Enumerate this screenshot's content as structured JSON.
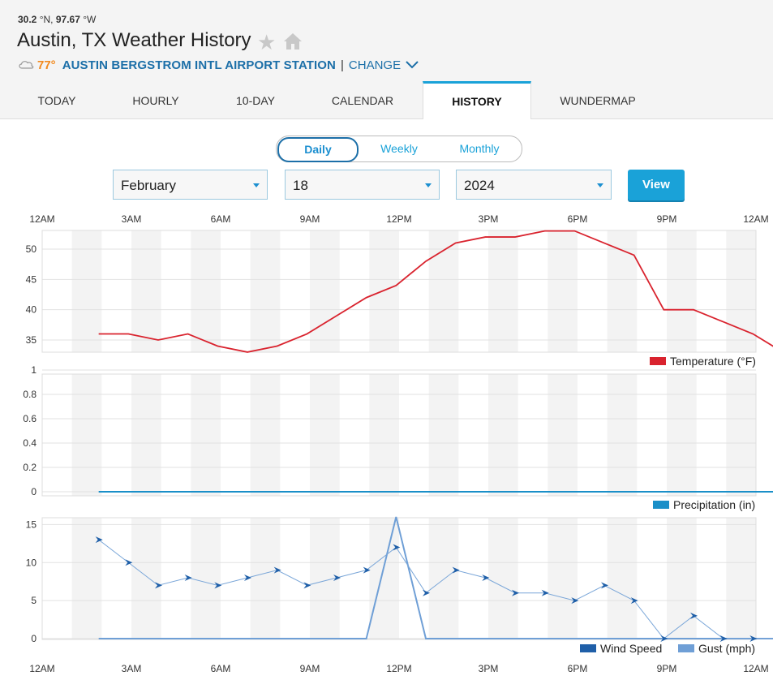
{
  "header": {
    "lat": "30.2",
    "lat_unit": "°N,",
    "lon": "97.67",
    "lon_unit": "°W",
    "title": "Austin, TX Weather History",
    "current_temp": "77°",
    "station": "AUSTIN BERGSTROM INTL AIRPORT STATION",
    "separator": "|",
    "change_label": "CHANGE"
  },
  "tabs": [
    {
      "label": "TODAY"
    },
    {
      "label": "HOURLY"
    },
    {
      "label": "10-DAY"
    },
    {
      "label": "CALENDAR"
    },
    {
      "label": "HISTORY",
      "active": true
    },
    {
      "label": "WUNDERMAP"
    }
  ],
  "period": {
    "options": [
      "Daily",
      "Weekly",
      "Monthly"
    ],
    "selected": "Daily"
  },
  "date_select": {
    "month": "February",
    "day": "18",
    "year": "2024",
    "view_label": "View"
  },
  "colors": {
    "accent": "#1aa2d8",
    "temperature": "#d9232e",
    "precipitation": "#1a8fc8",
    "wind": "#1f5fa8",
    "gust": "#6f9fd6"
  },
  "chart_data": [
    {
      "type": "line",
      "x_ticks": [
        "12AM",
        "3AM",
        "6AM",
        "9AM",
        "12PM",
        "3PM",
        "6PM",
        "9PM",
        "12AM"
      ],
      "x_hours": [
        1.9,
        2.9,
        3.9,
        4.9,
        5.9,
        6.9,
        7.9,
        8.9,
        9.9,
        10.9,
        11.9,
        12.9,
        13.9,
        14.9,
        15.9,
        16.9,
        17.9,
        18.9,
        19.9,
        20.9,
        21.9,
        22.9,
        23.9,
        24.9
      ],
      "ylim": [
        33,
        53
      ],
      "y_ticks": [
        "35",
        "40",
        "45",
        "50"
      ],
      "series": [
        {
          "name": "Temperature (°F)",
          "values": [
            36,
            36,
            35,
            36,
            34,
            33,
            34,
            36,
            39,
            42,
            44,
            48,
            51,
            52,
            52,
            53,
            53,
            51,
            49,
            40,
            40,
            38,
            36,
            33
          ]
        }
      ]
    },
    {
      "type": "line",
      "ylim": [
        0,
        1
      ],
      "y_ticks": [
        "0",
        "0.2",
        "0.4",
        "0.6",
        "0.8",
        "1"
      ],
      "series": [
        {
          "name": "Precipitation (in)",
          "values": [
            0,
            0,
            0,
            0,
            0,
            0,
            0,
            0,
            0,
            0,
            0,
            0,
            0,
            0,
            0,
            0,
            0,
            0,
            0,
            0,
            0,
            0,
            0,
            0
          ]
        }
      ]
    },
    {
      "type": "line",
      "x_ticks": [
        "12AM",
        "3AM",
        "6AM",
        "9AM",
        "12PM",
        "3PM",
        "6PM",
        "9PM",
        "12AM"
      ],
      "ylim": [
        0,
        16
      ],
      "y_ticks": [
        "0",
        "5",
        "10",
        "15"
      ],
      "series": [
        {
          "name": "Wind Speed",
          "values": [
            13,
            10,
            7,
            8,
            7,
            8,
            9,
            7,
            8,
            9,
            12,
            6,
            9,
            8,
            6,
            6,
            5,
            7,
            5,
            0,
            3,
            0,
            0,
            0
          ]
        },
        {
          "name": "Gust (mph)",
          "values": [
            0,
            0,
            0,
            0,
            0,
            0,
            0,
            0,
            0,
            0,
            16,
            0,
            0,
            0,
            0,
            0,
            0,
            0,
            0,
            0,
            0,
            0,
            0,
            0
          ]
        }
      ]
    }
  ]
}
